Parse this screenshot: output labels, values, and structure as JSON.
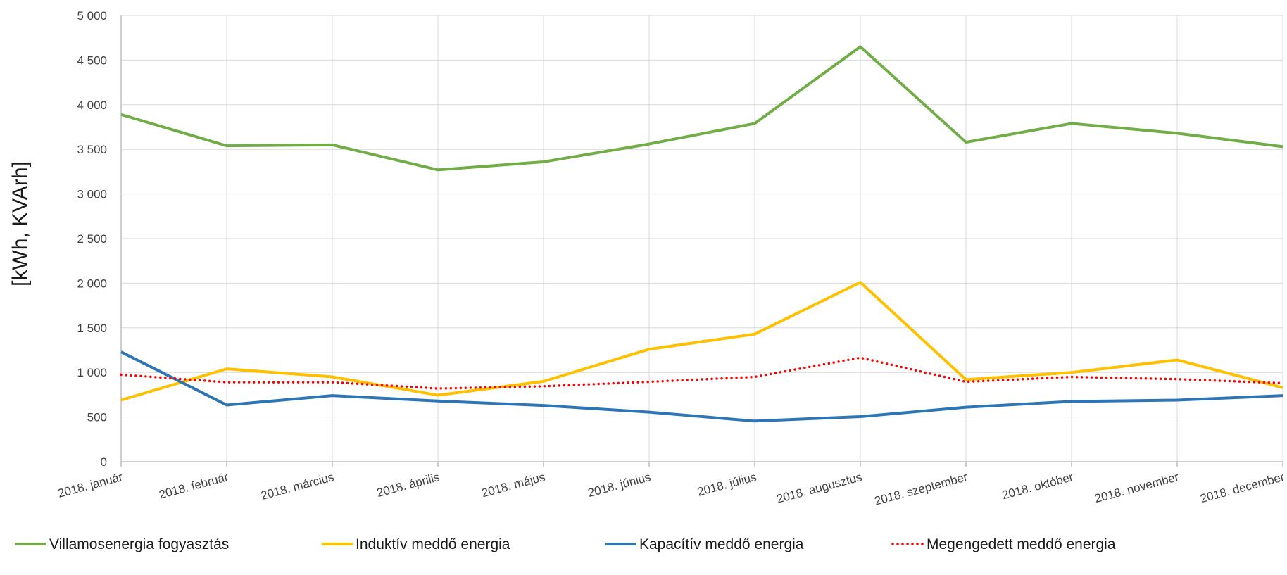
{
  "chart_data": {
    "type": "line",
    "ylabel": "[kWh, KVArh]",
    "ylim": [
      0,
      5000
    ],
    "yticks": [
      0,
      500,
      1000,
      1500,
      2000,
      2500,
      3000,
      3500,
      4000,
      4500,
      5000
    ],
    "ytick_labels": [
      "0",
      "500",
      "1 000",
      "1 500",
      "2 000",
      "2 500",
      "3 000",
      "3 500",
      "4 000",
      "4 500",
      "5 000"
    ],
    "grid": true,
    "legend_position": "bottom",
    "categories": [
      "2018. január",
      "2018. február",
      "2018. március",
      "2018. április",
      "2018. május",
      "2018. június",
      "2018. július",
      "2018. augusztus",
      "2018. szeptember",
      "2018. október",
      "2018. november",
      "2018. december"
    ],
    "series": [
      {
        "name": "Villamosenergia fogyasztás",
        "color": "#70ad47",
        "style": "solid",
        "values": [
          3890,
          3540,
          3550,
          3270,
          3360,
          3560,
          3790,
          4650,
          3580,
          3790,
          3680,
          3530
        ]
      },
      {
        "name": "Induktív meddő energia",
        "color": "#ffc000",
        "style": "solid",
        "values": [
          690,
          1040,
          950,
          745,
          900,
          1260,
          1430,
          2010,
          920,
          1000,
          1140,
          830
        ]
      },
      {
        "name": "Kapacítív meddő energia",
        "color": "#2e75b6",
        "style": "solid",
        "values": [
          1230,
          635,
          740,
          680,
          630,
          555,
          455,
          505,
          610,
          675,
          690,
          740
        ]
      },
      {
        "name": "Megengedett meddő energia",
        "color": "#ff0000",
        "style": "dotted",
        "values": [
          975,
          890,
          890,
          820,
          845,
          895,
          950,
          1165,
          895,
          950,
          925,
          880
        ]
      }
    ]
  }
}
